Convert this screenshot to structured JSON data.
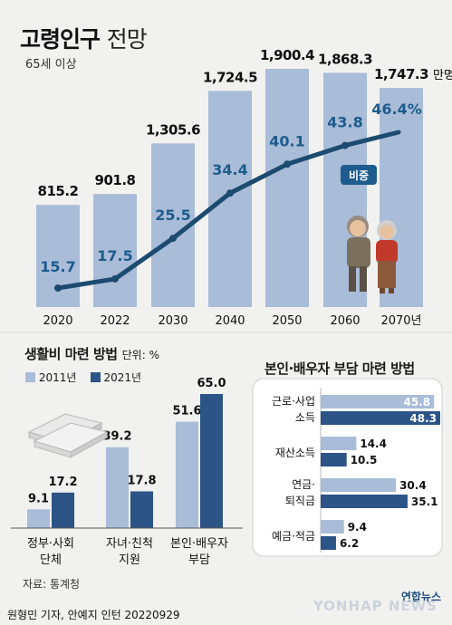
{
  "header": {
    "title_bold": "고령인구",
    "title_light": "전망",
    "subtitle": "65세 이상"
  },
  "chart_data": [
    {
      "type": "bar",
      "name": "고령인구 전망",
      "categories": [
        "2020",
        "2022",
        "2030",
        "2040",
        "2050",
        "2060",
        "2070년"
      ],
      "series": [
        {
          "name": "",
          "values": [
            815.2,
            901.8,
            1305.6,
            1724.5,
            1900.4,
            1868.3,
            1747.3
          ],
          "labels": [
            "815.2",
            "901.8",
            "1,305.6",
            "1,724.5",
            "1,900.4",
            "1,868.3",
            "1,747.3"
          ],
          "unit": "만명"
        },
        {
          "name": "비중",
          "type": "line",
          "values": [
            15.7,
            17.5,
            25.5,
            34.4,
            40.1,
            43.8,
            46.4
          ],
          "labels": [
            "15.7",
            "17.5",
            "25.5",
            "34.4",
            "40.1",
            "43.8",
            "46.4%"
          ]
        }
      ],
      "colors": {
        "bar": "#a9bcd8",
        "line": "#1d4b70",
        "badge": "#1d5c8c"
      }
    },
    {
      "type": "bar",
      "title": "생활비 마련 방법",
      "unit_label": "단위: %",
      "categories": [
        [
          "정부·사회",
          "단체"
        ],
        [
          "자녀·친척",
          "지원"
        ],
        [
          "본인·배우자",
          "부담"
        ]
      ],
      "series": [
        {
          "name": "2011년",
          "values": [
            9.1,
            39.2,
            51.6
          ],
          "color": "#a9bcd8"
        },
        {
          "name": "2021년",
          "values": [
            17.2,
            17.8,
            65.0
          ],
          "color": "#2c5486"
        }
      ],
      "value_labels": [
        [
          "9.1",
          "39.2",
          "51.6"
        ],
        [
          "17.2",
          "17.8",
          "65.0"
        ]
      ]
    },
    {
      "type": "bar",
      "orientation": "horizontal",
      "title": "본인·배우자 부담 마련 방법",
      "categories": [
        [
          "근로·사업",
          "소득"
        ],
        [
          "재산소득"
        ],
        [
          "연금·",
          "퇴직금"
        ],
        [
          "예금·적금"
        ]
      ],
      "series": [
        {
          "name": "2011년",
          "values": [
            45.8,
            14.4,
            30.4,
            9.4
          ],
          "color": "#a9bcd8"
        },
        {
          "name": "2021년",
          "values": [
            48.3,
            10.5,
            35.1,
            6.2
          ],
          "color": "#2c5486"
        }
      ],
      "value_labels": [
        [
          "45.8",
          "14.4",
          "30.4",
          "9.4"
        ],
        [
          "48.3",
          "10.5",
          "35.1",
          "6.2"
        ]
      ]
    }
  ],
  "footer": {
    "source": "자료: 통계청",
    "credit": "원형민 기자, 안예지 인턴  20220929",
    "brand": "연합뉴스",
    "watermark": "YONHAP NEWS"
  }
}
